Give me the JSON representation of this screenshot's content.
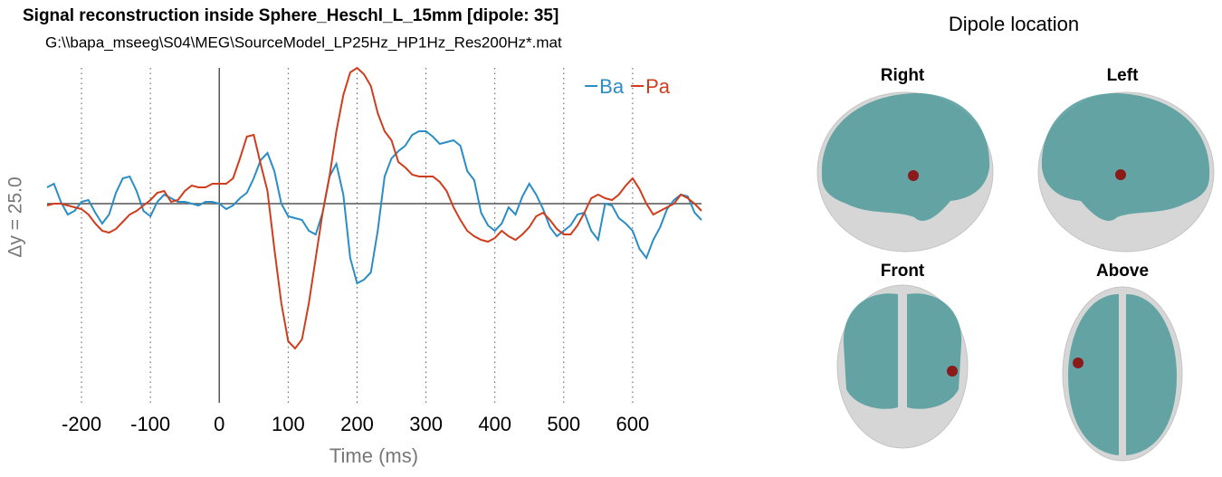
{
  "chart_data": {
    "type": "line",
    "title": "Signal reconstruction inside Sphere_Heschl_L_15mm [dipole: 35]",
    "subtitle": "G:\\\\bapa_mseeg\\S04\\MEG\\SourceModel_LP25Hz_HP1Hz_Res200Hz*.mat",
    "ylabel": "Δy = 25.0",
    "xlabel": "Time (ms)",
    "xlim": [
      -250,
      700
    ],
    "xticks": [
      -200,
      -100,
      0,
      100,
      200,
      300,
      400,
      500,
      600
    ],
    "ylim": [
      -220,
      150
    ],
    "grid": true,
    "legend": "top-right",
    "x": [
      -250,
      -240,
      -230,
      -220,
      -210,
      -200,
      -190,
      -180,
      -170,
      -160,
      -150,
      -140,
      -130,
      -120,
      -110,
      -100,
      -90,
      -80,
      -70,
      -60,
      -50,
      -40,
      -30,
      -20,
      -10,
      0,
      10,
      20,
      30,
      40,
      50,
      60,
      70,
      80,
      90,
      100,
      110,
      120,
      130,
      140,
      150,
      160,
      170,
      180,
      190,
      200,
      210,
      220,
      230,
      240,
      250,
      260,
      270,
      280,
      290,
      300,
      310,
      320,
      330,
      340,
      350,
      360,
      370,
      380,
      390,
      400,
      410,
      420,
      430,
      440,
      450,
      460,
      470,
      480,
      490,
      500,
      510,
      520,
      530,
      540,
      550,
      560,
      570,
      580,
      590,
      600,
      610,
      620,
      630,
      640,
      650,
      660,
      670,
      680,
      690,
      700
    ],
    "series": [
      {
        "name": "Ba",
        "color": "#2a8dc5",
        "values": [
          18,
          22,
          2,
          -12,
          -8,
          2,
          4,
          -10,
          -22,
          -12,
          12,
          28,
          30,
          14,
          -8,
          -14,
          2,
          10,
          6,
          2,
          2,
          0,
          -2,
          2,
          2,
          0,
          -6,
          -2,
          6,
          12,
          28,
          48,
          56,
          36,
          0,
          -14,
          -16,
          -18,
          -30,
          -34,
          -10,
          30,
          44,
          10,
          -60,
          -88,
          -84,
          -76,
          -30,
          30,
          50,
          58,
          64,
          76,
          80,
          80,
          74,
          66,
          68,
          70,
          64,
          36,
          26,
          -10,
          -24,
          -30,
          -22,
          -4,
          -12,
          8,
          22,
          10,
          -6,
          -26,
          -36,
          -30,
          -24,
          -12,
          -10,
          -30,
          -40,
          0,
          -2,
          -16,
          -22,
          -30,
          -50,
          -60,
          -40,
          -26,
          -6,
          4,
          10,
          8,
          -10,
          -18
        ]
      },
      {
        "name": "Pa",
        "color": "#d03d1d",
        "values": [
          -2,
          0,
          0,
          -2,
          -4,
          -6,
          -12,
          -22,
          -30,
          -32,
          -28,
          -20,
          -12,
          -8,
          -2,
          4,
          12,
          14,
          2,
          4,
          14,
          20,
          18,
          18,
          22,
          22,
          22,
          28,
          50,
          74,
          76,
          44,
          14,
          -50,
          -110,
          -152,
          -160,
          -150,
          -110,
          -60,
          -10,
          30,
          80,
          120,
          145,
          150,
          143,
          130,
          100,
          80,
          70,
          46,
          40,
          32,
          30,
          30,
          30,
          24,
          14,
          -4,
          -18,
          -30,
          -36,
          -40,
          -42,
          -38,
          -30,
          -36,
          -40,
          -34,
          -26,
          -14,
          -10,
          -18,
          -28,
          -34,
          -34,
          -24,
          -10,
          6,
          10,
          6,
          4,
          10,
          20,
          28,
          16,
          0,
          -12,
          -8,
          -4,
          0,
          10,
          6,
          0,
          -8
        ]
      }
    ]
  },
  "dipole_panel": {
    "title": "Dipole location",
    "views": [
      "Right",
      "Left",
      "Front",
      "Above"
    ]
  }
}
